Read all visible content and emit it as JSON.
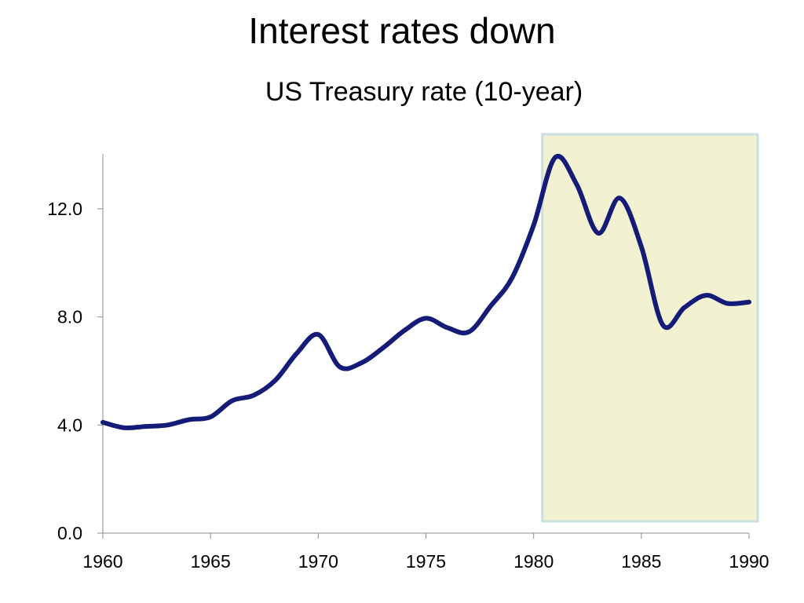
{
  "title": "Interest rates down",
  "chart_data": {
    "type": "line",
    "title": "US Treasury rate (10-year)",
    "xlabel": "",
    "ylabel": "",
    "xlim": [
      1960,
      1990
    ],
    "ylim": [
      0,
      14
    ],
    "x_ticks": [
      "1960",
      "1965",
      "1970",
      "1975",
      "1980",
      "1985",
      "1990"
    ],
    "y_ticks": [
      "0.0",
      "4.0",
      "8.0",
      "12.0"
    ],
    "grid": false,
    "legend": "none",
    "highlight": {
      "x_start": 1980.4,
      "x_end": 1990.4,
      "color": "#f2f2d2",
      "border": "#c9dfe3"
    },
    "series": [
      {
        "color": "#141c78",
        "x": [
          1960,
          1961,
          1962,
          1963,
          1964,
          1965,
          1966,
          1967,
          1968,
          1969,
          1970,
          1971,
          1972,
          1973,
          1974,
          1975,
          1976,
          1977,
          1978,
          1979,
          1980,
          1981,
          1982,
          1983,
          1984,
          1985,
          1986,
          1987,
          1988,
          1989,
          1990
        ],
        "values": [
          4.1,
          3.9,
          3.95,
          4.0,
          4.2,
          4.3,
          4.9,
          5.1,
          5.65,
          6.65,
          7.35,
          6.15,
          6.3,
          6.85,
          7.5,
          7.95,
          7.6,
          7.45,
          8.4,
          9.45,
          11.4,
          13.9,
          12.9,
          11.1,
          12.4,
          10.6,
          7.7,
          8.35,
          8.8,
          8.5,
          8.55
        ]
      }
    ]
  }
}
